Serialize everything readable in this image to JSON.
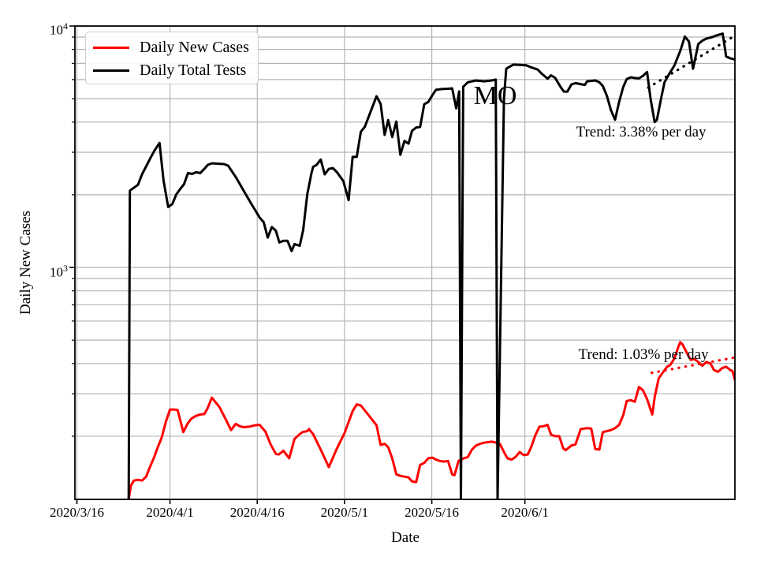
{
  "chart_data": {
    "type": "line",
    "xlabel": "Date",
    "ylabel": "Daily New Cases",
    "x_axis": {
      "unit": "days since 2020/3/16",
      "tick_labels": [
        "2020/3/16",
        "2020/4/1",
        "2020/4/16",
        "2020/5/1",
        "2020/5/16",
        "2020/6/1"
      ],
      "tick_days": [
        0,
        16,
        31,
        46,
        61,
        77
      ],
      "range_days": [
        -0.34,
        113.1
      ]
    },
    "y_axis": {
      "scale": "log",
      "range": [
        109.5,
        10000
      ],
      "major_tick_values": [
        1000,
        10000
      ],
      "ticks": [
        {
          "base": "10",
          "exp": "3"
        },
        {
          "base": "10",
          "exp": "4"
        }
      ],
      "minor_gridline_values": [
        200,
        300,
        400,
        500,
        600,
        700,
        800,
        900,
        2000,
        3000,
        4000,
        5000,
        6000,
        7000,
        8000,
        9000
      ]
    },
    "grid": "both",
    "legend_position": "upper-left",
    "series": [
      {
        "name": "Daily New Cases",
        "color": "#ff0000",
        "points": [
          [
            8.9,
            110
          ],
          [
            9.3,
            125
          ],
          [
            9.8,
            131
          ],
          [
            10.5,
            132
          ],
          [
            11.2,
            131
          ],
          [
            11.9,
            136
          ],
          [
            12.6,
            150
          ],
          [
            13.3,
            164
          ],
          [
            13.9,
            180
          ],
          [
            14.6,
            198
          ],
          [
            15.3,
            230
          ],
          [
            16,
            258
          ],
          [
            16.7,
            258
          ],
          [
            17.3,
            257
          ],
          [
            18.3,
            208
          ],
          [
            19,
            225
          ],
          [
            19.7,
            237
          ],
          [
            20.5,
            243
          ],
          [
            21.2,
            246
          ],
          [
            21.9,
            247
          ],
          [
            22.5,
            262
          ],
          [
            23.2,
            289
          ],
          [
            23.8,
            277
          ],
          [
            24.5,
            264
          ],
          [
            25.5,
            237
          ],
          [
            26.5,
            212
          ],
          [
            27.3,
            225
          ],
          [
            28,
            220
          ],
          [
            28.7,
            218
          ],
          [
            29.6,
            219
          ],
          [
            30.6,
            222
          ],
          [
            31.4,
            223
          ],
          [
            32.4,
            209
          ],
          [
            33.3,
            185
          ],
          [
            34.2,
            169
          ],
          [
            34.7,
            168
          ],
          [
            35.5,
            174
          ],
          [
            36.5,
            162
          ],
          [
            37.4,
            195
          ],
          [
            38.3,
            204
          ],
          [
            38.8,
            208
          ],
          [
            39.6,
            210
          ],
          [
            39.9,
            214
          ],
          [
            40.6,
            204
          ],
          [
            41.9,
            176
          ],
          [
            43.3,
            149
          ],
          [
            44.7,
            178
          ],
          [
            46,
            206
          ],
          [
            47.4,
            254
          ],
          [
            48.1,
            271
          ],
          [
            48.8,
            268
          ],
          [
            50.1,
            245
          ],
          [
            51.5,
            222
          ],
          [
            52.2,
            184
          ],
          [
            52.9,
            186
          ],
          [
            53.5,
            180
          ],
          [
            54.2,
            162
          ],
          [
            54.9,
            139
          ],
          [
            55.6,
            137
          ],
          [
            56.3,
            136
          ],
          [
            57,
            135
          ],
          [
            57.6,
            130
          ],
          [
            58.3,
            129
          ],
          [
            59,
            152
          ],
          [
            59.7,
            155
          ],
          [
            60.4,
            162
          ],
          [
            61.1,
            163
          ],
          [
            61.7,
            160
          ],
          [
            62.4,
            158
          ],
          [
            63.1,
            157
          ],
          [
            63.8,
            158
          ],
          [
            64.5,
            139
          ],
          [
            64.9,
            138
          ],
          [
            65.6,
            158
          ],
          [
            66.5,
            162
          ],
          [
            67.2,
            164
          ],
          [
            67.9,
            176
          ],
          [
            68.6,
            183
          ],
          [
            69.3,
            186
          ],
          [
            70,
            188
          ],
          [
            70.6,
            189
          ],
          [
            71.3,
            190
          ],
          [
            72.1,
            188
          ],
          [
            72.7,
            186
          ],
          [
            73.4,
            172
          ],
          [
            74,
            162
          ],
          [
            74.7,
            160
          ],
          [
            75.4,
            164
          ],
          [
            76.1,
            172
          ],
          [
            76.8,
            167
          ],
          [
            77.5,
            168
          ],
          [
            78.1,
            181
          ],
          [
            78.8,
            202
          ],
          [
            79.5,
            219
          ],
          [
            80.2,
            220
          ],
          [
            80.9,
            223
          ],
          [
            81.5,
            203
          ],
          [
            82.2,
            200
          ],
          [
            82.9,
            200
          ],
          [
            83.6,
            178
          ],
          [
            84,
            175
          ],
          [
            85,
            183
          ],
          [
            85.7,
            185
          ],
          [
            86.6,
            214
          ],
          [
            87.7,
            216
          ],
          [
            88.4,
            215
          ],
          [
            89.1,
            177
          ],
          [
            89.8,
            176
          ],
          [
            90.4,
            208
          ],
          [
            91.1,
            210
          ],
          [
            91.8,
            212
          ],
          [
            92.5,
            216
          ],
          [
            93.2,
            223
          ],
          [
            93.9,
            244
          ],
          [
            94.5,
            280
          ],
          [
            95.2,
            282
          ],
          [
            95.9,
            278
          ],
          [
            96.6,
            320
          ],
          [
            97.3,
            310
          ],
          [
            98,
            285
          ],
          [
            98.9,
            246
          ],
          [
            99.3,
            290
          ],
          [
            100,
            347
          ],
          [
            100.7,
            367
          ],
          [
            101.4,
            387
          ],
          [
            102,
            395
          ],
          [
            102.7,
            420
          ],
          [
            103.4,
            470
          ],
          [
            103.7,
            490
          ],
          [
            104.1,
            480
          ],
          [
            104.8,
            444
          ],
          [
            105.5,
            414
          ],
          [
            106.1,
            418
          ],
          [
            106.8,
            406
          ],
          [
            107.5,
            392
          ],
          [
            108.2,
            406
          ],
          [
            108.9,
            400
          ],
          [
            109.5,
            376
          ],
          [
            110.2,
            370
          ],
          [
            110.9,
            383
          ],
          [
            111.6,
            388
          ],
          [
            112.3,
            376
          ],
          [
            112.7,
            372
          ],
          [
            113.1,
            341
          ]
        ]
      },
      {
        "name": "Daily Total Tests",
        "color": "#000000",
        "points": [
          [
            8.9,
            109
          ],
          [
            9.1,
            2080
          ],
          [
            10.5,
            2200
          ],
          [
            11.2,
            2430
          ],
          [
            11.9,
            2620
          ],
          [
            12.6,
            2830
          ],
          [
            13.3,
            3040
          ],
          [
            14.2,
            3280
          ],
          [
            14.9,
            2290
          ],
          [
            15.7,
            1780
          ],
          [
            16.4,
            1830
          ],
          [
            17.1,
            2010
          ],
          [
            17.8,
            2120
          ],
          [
            18.4,
            2210
          ],
          [
            19.1,
            2460
          ],
          [
            19.8,
            2440
          ],
          [
            20.5,
            2480
          ],
          [
            21.2,
            2460
          ],
          [
            21.9,
            2560
          ],
          [
            22.5,
            2660
          ],
          [
            23.2,
            2700
          ],
          [
            25.3,
            2680
          ],
          [
            26,
            2640
          ],
          [
            27.3,
            2370
          ],
          [
            28.7,
            2070
          ],
          [
            30,
            1830
          ],
          [
            30.7,
            1720
          ],
          [
            31.4,
            1610
          ],
          [
            32.1,
            1540
          ],
          [
            32.8,
            1330
          ],
          [
            33.5,
            1470
          ],
          [
            34.2,
            1420
          ],
          [
            34.8,
            1270
          ],
          [
            35.5,
            1290
          ],
          [
            36.2,
            1290
          ],
          [
            36.9,
            1170
          ],
          [
            37.4,
            1250
          ],
          [
            38.3,
            1230
          ],
          [
            38.9,
            1430
          ],
          [
            39.6,
            2010
          ],
          [
            40.3,
            2450
          ],
          [
            40.6,
            2610
          ],
          [
            41.2,
            2660
          ],
          [
            41.9,
            2800
          ],
          [
            42.6,
            2430
          ],
          [
            43.3,
            2560
          ],
          [
            44,
            2580
          ],
          [
            44.7,
            2480
          ],
          [
            45.8,
            2280
          ],
          [
            46.7,
            1900
          ],
          [
            47.4,
            2870
          ],
          [
            48.1,
            2870
          ],
          [
            48.8,
            3650
          ],
          [
            49.5,
            3830
          ],
          [
            50.3,
            4300
          ],
          [
            51.5,
            5120
          ],
          [
            52.2,
            4760
          ],
          [
            52.9,
            3540
          ],
          [
            53.5,
            4080
          ],
          [
            54.2,
            3470
          ],
          [
            54.9,
            4020
          ],
          [
            55.6,
            2930
          ],
          [
            56.3,
            3340
          ],
          [
            57,
            3260
          ],
          [
            57.6,
            3680
          ],
          [
            58.3,
            3800
          ],
          [
            59,
            3820
          ],
          [
            59.7,
            4740
          ],
          [
            60.4,
            4850
          ],
          [
            61.1,
            5170
          ],
          [
            61.7,
            5440
          ],
          [
            62.7,
            5480
          ],
          [
            63.8,
            5500
          ],
          [
            64.5,
            5520
          ],
          [
            65.2,
            4560
          ],
          [
            65.7,
            5360
          ],
          [
            66,
            109
          ],
          [
            66.4,
            5600
          ],
          [
            67.2,
            5850
          ],
          [
            68.6,
            5950
          ],
          [
            70,
            5900
          ],
          [
            71.3,
            5950
          ],
          [
            72,
            6000
          ],
          [
            72.3,
            109
          ],
          [
            73.4,
            5000
          ],
          [
            73.8,
            6660
          ],
          [
            75,
            6920
          ],
          [
            76.1,
            6900
          ],
          [
            77.2,
            6880
          ],
          [
            78.1,
            6740
          ],
          [
            79.2,
            6600
          ],
          [
            79.9,
            6350
          ],
          [
            80.9,
            6050
          ],
          [
            81.5,
            6250
          ],
          [
            82.2,
            6100
          ],
          [
            83.2,
            5560
          ],
          [
            83.7,
            5350
          ],
          [
            84.3,
            5350
          ],
          [
            85,
            5730
          ],
          [
            85.7,
            5800
          ],
          [
            86.5,
            5750
          ],
          [
            87.3,
            5700
          ],
          [
            87.7,
            5900
          ],
          [
            89.1,
            5950
          ],
          [
            89.8,
            5850
          ],
          [
            90.4,
            5640
          ],
          [
            91.1,
            5130
          ],
          [
            91.8,
            4480
          ],
          [
            92.5,
            4090
          ],
          [
            93.2,
            4860
          ],
          [
            93.9,
            5580
          ],
          [
            94.5,
            6030
          ],
          [
            95.2,
            6130
          ],
          [
            95.9,
            6090
          ],
          [
            96.6,
            6070
          ],
          [
            97.3,
            6220
          ],
          [
            98,
            6450
          ],
          [
            98.6,
            5000
          ],
          [
            99.3,
            4000
          ],
          [
            99.7,
            4090
          ],
          [
            100.4,
            5000
          ],
          [
            101,
            5850
          ],
          [
            101.8,
            6330
          ],
          [
            102.7,
            6870
          ],
          [
            103.7,
            7880
          ],
          [
            104.5,
            9050
          ],
          [
            105.2,
            8620
          ],
          [
            105.9,
            6650
          ],
          [
            106.8,
            8420
          ],
          [
            107.5,
            8700
          ],
          [
            108.2,
            8870
          ],
          [
            109.2,
            9000
          ],
          [
            110,
            9150
          ],
          [
            111,
            9300
          ],
          [
            111.6,
            7480
          ],
          [
            112.3,
            7350
          ],
          [
            113.1,
            7270
          ]
        ]
      }
    ],
    "trend_lines": [
      {
        "series": "Daily Total Tests",
        "label": "Trend: 3.38% per day",
        "color": "#000000",
        "pct_per_day": 3.38,
        "start_day": 98.2,
        "end_day": 113.1,
        "start_value": 5560
      },
      {
        "series": "Daily New Cases",
        "label": "Trend: 1.03% per day",
        "color": "#ff0000",
        "pct_per_day": 1.03,
        "start_day": 98.8,
        "end_day": 113.1,
        "start_value": 366
      }
    ],
    "annotations": [
      {
        "text": "MO",
        "day": 71.9,
        "value": 5150
      }
    ]
  },
  "colors": {
    "background": "#ffffff",
    "grid": "#b4b4b4",
    "spine": "#000000",
    "text": "#000000",
    "cases_line": "#ff0000",
    "tests_line": "#000000"
  }
}
